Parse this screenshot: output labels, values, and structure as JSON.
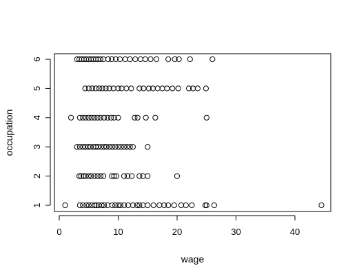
{
  "chart_data": {
    "type": "scatter",
    "title": "",
    "xlabel": "wage",
    "ylabel": "occupation",
    "xlim": [
      0,
      45
    ],
    "ylim": [
      1,
      6
    ],
    "x_ticks": [
      0,
      10,
      20,
      30,
      40
    ],
    "y_ticks": [
      1,
      2,
      3,
      4,
      5,
      6
    ],
    "grid": false,
    "marker": "open-circle",
    "series": [
      {
        "values": [
          [
            1.0,
            1
          ],
          [
            3.5,
            1
          ],
          [
            4.0,
            1
          ],
          [
            4.6,
            1
          ],
          [
            5.0,
            1
          ],
          [
            5.5,
            1
          ],
          [
            6.0,
            1
          ],
          [
            6.3,
            1
          ],
          [
            6.7,
            1
          ],
          [
            7.2,
            1
          ],
          [
            7.6,
            1
          ],
          [
            8.2,
            1
          ],
          [
            9.0,
            1
          ],
          [
            9.5,
            1
          ],
          [
            10.0,
            1
          ],
          [
            10.4,
            1
          ],
          [
            11.0,
            1
          ],
          [
            11.7,
            1
          ],
          [
            12.5,
            1
          ],
          [
            13.2,
            1
          ],
          [
            13.6,
            1
          ],
          [
            14.2,
            1
          ],
          [
            15.0,
            1
          ],
          [
            16.0,
            1
          ],
          [
            17.0,
            1
          ],
          [
            17.8,
            1
          ],
          [
            18.5,
            1
          ],
          [
            19.5,
            1
          ],
          [
            20.7,
            1
          ],
          [
            21.5,
            1
          ],
          [
            22.5,
            1
          ],
          [
            24.8,
            1
          ],
          [
            25.0,
            1
          ],
          [
            26.3,
            1
          ],
          [
            44.5,
            1
          ],
          [
            3.4,
            2
          ],
          [
            3.7,
            2
          ],
          [
            4.1,
            2
          ],
          [
            4.5,
            2
          ],
          [
            5.0,
            2
          ],
          [
            5.4,
            2
          ],
          [
            6.0,
            2
          ],
          [
            6.5,
            2
          ],
          [
            7.0,
            2
          ],
          [
            7.5,
            2
          ],
          [
            8.9,
            2
          ],
          [
            9.3,
            2
          ],
          [
            9.7,
            2
          ],
          [
            11.0,
            2
          ],
          [
            11.6,
            2
          ],
          [
            12.3,
            2
          ],
          [
            13.6,
            2
          ],
          [
            14.2,
            2
          ],
          [
            15.0,
            2
          ],
          [
            20.0,
            2
          ],
          [
            3.0,
            3
          ],
          [
            3.5,
            3
          ],
          [
            4.0,
            3
          ],
          [
            4.4,
            3
          ],
          [
            4.9,
            3
          ],
          [
            5.3,
            3
          ],
          [
            5.8,
            3
          ],
          [
            6.2,
            3
          ],
          [
            6.6,
            3
          ],
          [
            7.1,
            3
          ],
          [
            7.6,
            3
          ],
          [
            8.0,
            3
          ],
          [
            8.5,
            3
          ],
          [
            9.0,
            3
          ],
          [
            9.5,
            3
          ],
          [
            10.0,
            3
          ],
          [
            10.5,
            3
          ],
          [
            11.0,
            3
          ],
          [
            11.5,
            3
          ],
          [
            12.0,
            3
          ],
          [
            12.5,
            3
          ],
          [
            15.0,
            3
          ],
          [
            2.0,
            4
          ],
          [
            3.5,
            4
          ],
          [
            4.0,
            4
          ],
          [
            4.5,
            4
          ],
          [
            5.0,
            4
          ],
          [
            5.5,
            4
          ],
          [
            6.0,
            4
          ],
          [
            6.5,
            4
          ],
          [
            7.0,
            4
          ],
          [
            7.6,
            4
          ],
          [
            8.2,
            4
          ],
          [
            8.8,
            4
          ],
          [
            9.3,
            4
          ],
          [
            10.0,
            4
          ],
          [
            12.8,
            4
          ],
          [
            13.3,
            4
          ],
          [
            14.7,
            4
          ],
          [
            16.3,
            4
          ],
          [
            25.0,
            4
          ],
          [
            4.4,
            5
          ],
          [
            5.0,
            5
          ],
          [
            5.6,
            5
          ],
          [
            6.2,
            5
          ],
          [
            6.8,
            5
          ],
          [
            7.3,
            5
          ],
          [
            7.9,
            5
          ],
          [
            8.5,
            5
          ],
          [
            9.2,
            5
          ],
          [
            10.0,
            5
          ],
          [
            10.6,
            5
          ],
          [
            11.4,
            5
          ],
          [
            12.2,
            5
          ],
          [
            13.6,
            5
          ],
          [
            14.3,
            5
          ],
          [
            15.2,
            5
          ],
          [
            15.9,
            5
          ],
          [
            16.7,
            5
          ],
          [
            17.5,
            5
          ],
          [
            18.3,
            5
          ],
          [
            19.2,
            5
          ],
          [
            20.2,
            5
          ],
          [
            22.0,
            5
          ],
          [
            22.7,
            5
          ],
          [
            23.5,
            5
          ],
          [
            24.9,
            5
          ],
          [
            3.0,
            6
          ],
          [
            3.4,
            6
          ],
          [
            3.8,
            6
          ],
          [
            4.2,
            6
          ],
          [
            4.6,
            6
          ],
          [
            5.0,
            6
          ],
          [
            5.4,
            6
          ],
          [
            5.8,
            6
          ],
          [
            6.2,
            6
          ],
          [
            6.6,
            6
          ],
          [
            7.0,
            6
          ],
          [
            7.5,
            6
          ],
          [
            8.3,
            6
          ],
          [
            8.9,
            6
          ],
          [
            9.6,
            6
          ],
          [
            10.3,
            6
          ],
          [
            11.2,
            6
          ],
          [
            12.0,
            6
          ],
          [
            12.9,
            6
          ],
          [
            13.8,
            6
          ],
          [
            14.6,
            6
          ],
          [
            15.5,
            6
          ],
          [
            16.5,
            6
          ],
          [
            18.5,
            6
          ],
          [
            19.6,
            6
          ],
          [
            20.3,
            6
          ],
          [
            22.2,
            6
          ],
          [
            26.0,
            6
          ]
        ]
      }
    ]
  }
}
